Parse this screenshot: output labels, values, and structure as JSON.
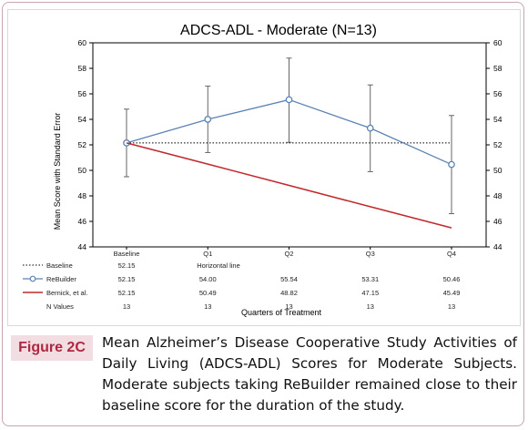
{
  "figure": {
    "label": "Figure 2C",
    "caption": "Mean Alzheimer’s Disease Cooperative Study Activities of Daily Living (ADCS-ADL) Scores for Moderate Subjects. Moderate subjects taking ReBuilder remained close to their baseline score for the duration of the study."
  },
  "chart_data": {
    "type": "line",
    "title": "ADCS-ADL - Moderate (N=13)",
    "ylabel": "Mean Score with Standard Error",
    "xlabel": "Quarters of Treatment",
    "ylim": [
      44,
      60
    ],
    "yticks": [
      44,
      46,
      48,
      50,
      52,
      54,
      56,
      58,
      60
    ],
    "categories": [
      "Baseline",
      "Q1",
      "Q2",
      "Q3",
      "Q4"
    ],
    "secondary_y_axis": true,
    "series": [
      {
        "name": "Baseline",
        "style": "dotted",
        "color": "#000000",
        "values": [
          52.15,
          52.15,
          52.15,
          52.15,
          52.15
        ],
        "table_row": [
          "52.15",
          "Horizontal line",
          "",
          "",
          ""
        ]
      },
      {
        "name": "ReBuilder",
        "style": "line-circle",
        "color": "#5b83b5",
        "values": [
          52.15,
          54.0,
          55.54,
          53.31,
          50.46
        ],
        "error_low": [
          49.5,
          51.4,
          52.2,
          49.9,
          46.6
        ],
        "error_high": [
          54.8,
          56.6,
          58.8,
          56.7,
          54.3
        ],
        "table_row": [
          "52.15",
          "54.00",
          "55.54",
          "53.31",
          "50.46"
        ]
      },
      {
        "name": "Bernick, et al.",
        "style": "line",
        "color": "#c0282c",
        "values": [
          52.15,
          50.49,
          48.82,
          47.15,
          45.49
        ],
        "table_row": [
          "52.15",
          "50.49",
          "48.82",
          "47.15",
          "45.49"
        ]
      }
    ],
    "extra_rows": [
      {
        "name": "N Values",
        "values": [
          "13",
          "13",
          "13",
          "13",
          "13"
        ]
      }
    ]
  }
}
